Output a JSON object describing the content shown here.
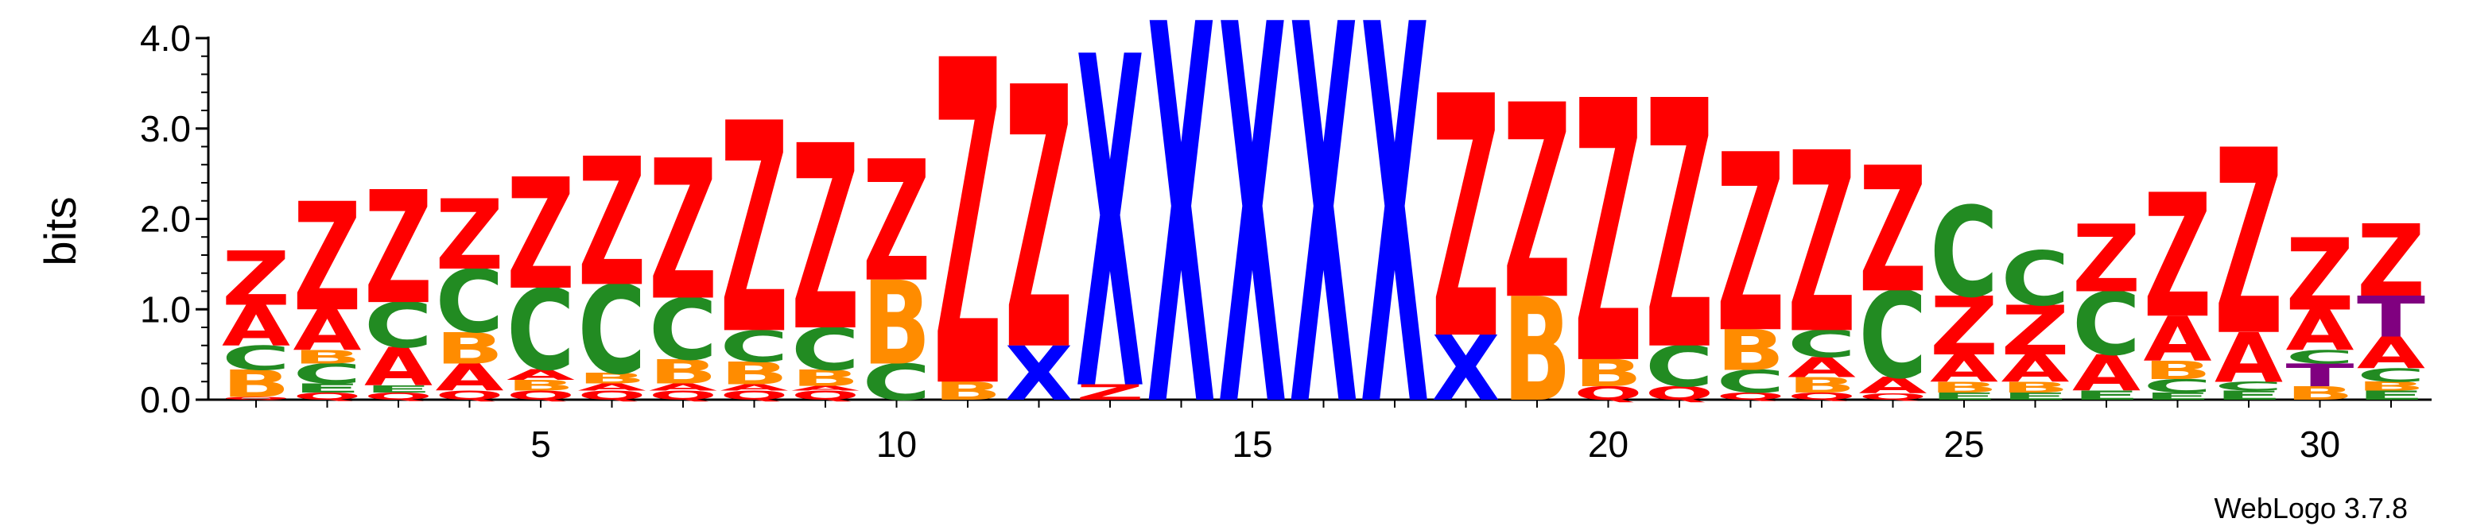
{
  "credit": "WebLogo 3.7.8",
  "colors": {
    "Z": "#ff0000",
    "X": "#0000ff",
    "C": "#228b22",
    "B": "#ff8c00",
    "A": "#ff0000",
    "E": "#228b22",
    "Q": "#ff0000",
    "T": "#800080"
  },
  "chart_data": {
    "type": "sequence-logo",
    "xlabel": "",
    "ylabel": "bits",
    "ylim": [
      0,
      4.0
    ],
    "yticks": [
      "0.0",
      "1.0",
      "2.0",
      "3.0",
      "4.0"
    ],
    "xticks": [
      5,
      10,
      15,
      20,
      25,
      30
    ],
    "positions": [
      {
        "pos": 1,
        "stack": [
          [
            "Q",
            0.03
          ],
          [
            "B",
            0.3
          ],
          [
            "C",
            0.27
          ],
          [
            "A",
            0.45
          ],
          [
            "Z",
            0.6
          ]
        ]
      },
      {
        "pos": 2,
        "stack": [
          [
            "Q",
            0.08
          ],
          [
            "E",
            0.1
          ],
          [
            "C",
            0.22
          ],
          [
            "B",
            0.15
          ],
          [
            "A",
            0.45
          ],
          [
            "Z",
            1.2
          ]
        ]
      },
      {
        "pos": 3,
        "stack": [
          [
            "Q",
            0.08
          ],
          [
            "E",
            0.08
          ],
          [
            "A",
            0.42
          ],
          [
            "C",
            0.5
          ],
          [
            "Z",
            1.25
          ]
        ]
      },
      {
        "pos": 4,
        "stack": [
          [
            "Q",
            0.1
          ],
          [
            "A",
            0.3
          ],
          [
            "B",
            0.35
          ],
          [
            "C",
            0.7
          ],
          [
            "Z",
            0.78
          ]
        ]
      },
      {
        "pos": 5,
        "stack": [
          [
            "Q",
            0.1
          ],
          [
            "B",
            0.12
          ],
          [
            "A",
            0.12
          ],
          [
            "C",
            0.9
          ],
          [
            "Z",
            1.23
          ]
        ]
      },
      {
        "pos": 6,
        "stack": [
          [
            "Q",
            0.1
          ],
          [
            "A",
            0.08
          ],
          [
            "B",
            0.12
          ],
          [
            "C",
            0.98
          ],
          [
            "Z",
            1.42
          ]
        ]
      },
      {
        "pos": 7,
        "stack": [
          [
            "Q",
            0.1
          ],
          [
            "A",
            0.08
          ],
          [
            "B",
            0.27
          ],
          [
            "C",
            0.68
          ],
          [
            "Z",
            1.55
          ]
        ]
      },
      {
        "pos": 8,
        "stack": [
          [
            "Q",
            0.1
          ],
          [
            "A",
            0.07
          ],
          [
            "B",
            0.25
          ],
          [
            "C",
            0.35
          ],
          [
            "Z",
            2.33
          ]
        ]
      },
      {
        "pos": 9,
        "stack": [
          [
            "Q",
            0.1
          ],
          [
            "A",
            0.05
          ],
          [
            "B",
            0.18
          ],
          [
            "C",
            0.47
          ],
          [
            "Z",
            2.05
          ]
        ]
      },
      {
        "pos": 10,
        "stack": [
          [
            "C",
            0.4
          ],
          [
            "B",
            0.93
          ],
          [
            "Z",
            1.34
          ]
        ]
      },
      {
        "pos": 11,
        "stack": [
          [
            "B",
            0.2
          ],
          [
            "Z",
            3.6
          ]
        ]
      },
      {
        "pos": 12,
        "stack": [
          [
            "X",
            0.6
          ],
          [
            "Z",
            2.9
          ]
        ]
      },
      {
        "pos": 13,
        "stack": [
          [
            "Z",
            0.17
          ],
          [
            "X",
            3.67
          ]
        ]
      },
      {
        "pos": 14,
        "stack": [
          [
            "X",
            4.2
          ]
        ]
      },
      {
        "pos": 15,
        "stack": [
          [
            "X",
            4.2
          ]
        ]
      },
      {
        "pos": 16,
        "stack": [
          [
            "X",
            4.2
          ]
        ]
      },
      {
        "pos": 17,
        "stack": [
          [
            "X",
            4.2
          ]
        ]
      },
      {
        "pos": 18,
        "stack": [
          [
            "X",
            0.72
          ],
          [
            "Z",
            2.68
          ]
        ]
      },
      {
        "pos": 19,
        "stack": [
          [
            "B",
            1.15
          ],
          [
            "Z",
            2.15
          ]
        ]
      },
      {
        "pos": 20,
        "stack": [
          [
            "Q",
            0.15
          ],
          [
            "B",
            0.3
          ],
          [
            "Z",
            2.9
          ]
        ]
      },
      {
        "pos": 21,
        "stack": [
          [
            "Q",
            0.15
          ],
          [
            "C",
            0.45
          ],
          [
            "Z",
            2.75
          ]
        ]
      },
      {
        "pos": 22,
        "stack": [
          [
            "Q",
            0.08
          ],
          [
            "C",
            0.25
          ],
          [
            "B",
            0.45
          ],
          [
            "Z",
            1.97
          ]
        ]
      },
      {
        "pos": 23,
        "stack": [
          [
            "Q",
            0.08
          ],
          [
            "B",
            0.17
          ],
          [
            "A",
            0.22
          ],
          [
            "C",
            0.3
          ],
          [
            "Z",
            2.0
          ]
        ]
      },
      {
        "pos": 24,
        "stack": [
          [
            "Q",
            0.07
          ],
          [
            "A",
            0.18
          ],
          [
            "C",
            0.96
          ],
          [
            "Z",
            1.39
          ]
        ]
      },
      {
        "pos": 25,
        "stack": [
          [
            "E",
            0.08
          ],
          [
            "B",
            0.12
          ],
          [
            "A",
            0.3
          ],
          [
            "Z",
            0.65
          ],
          [
            "C",
            1.0
          ]
        ]
      },
      {
        "pos": 26,
        "stack": [
          [
            "E",
            0.08
          ],
          [
            "B",
            0.12
          ],
          [
            "A",
            0.3
          ],
          [
            "Z",
            0.55
          ],
          [
            "C",
            0.6
          ]
        ]
      },
      {
        "pos": 27,
        "stack": [
          [
            "E",
            0.1
          ],
          [
            "A",
            0.4
          ],
          [
            "C",
            0.7
          ],
          [
            "Z",
            0.75
          ]
        ]
      },
      {
        "pos": 28,
        "stack": [
          [
            "E",
            0.08
          ],
          [
            "C",
            0.15
          ],
          [
            "B",
            0.2
          ],
          [
            "A",
            0.5
          ],
          [
            "Z",
            1.37
          ]
        ]
      },
      {
        "pos": 29,
        "stack": [
          [
            "E",
            0.1
          ],
          [
            "C",
            0.1
          ],
          [
            "A",
            0.55
          ],
          [
            "Z",
            2.05
          ]
        ]
      },
      {
        "pos": 30,
        "stack": [
          [
            "B",
            0.15
          ],
          [
            "T",
            0.25
          ],
          [
            "C",
            0.15
          ],
          [
            "A",
            0.45
          ],
          [
            "Z",
            0.8
          ]
        ]
      },
      {
        "pos": 31,
        "stack": [
          [
            "E",
            0.1
          ],
          [
            "B",
            0.1
          ],
          [
            "C",
            0.15
          ],
          [
            "A",
            0.35
          ],
          [
            "T",
            0.45
          ],
          [
            "Z",
            0.8
          ]
        ]
      }
    ]
  }
}
